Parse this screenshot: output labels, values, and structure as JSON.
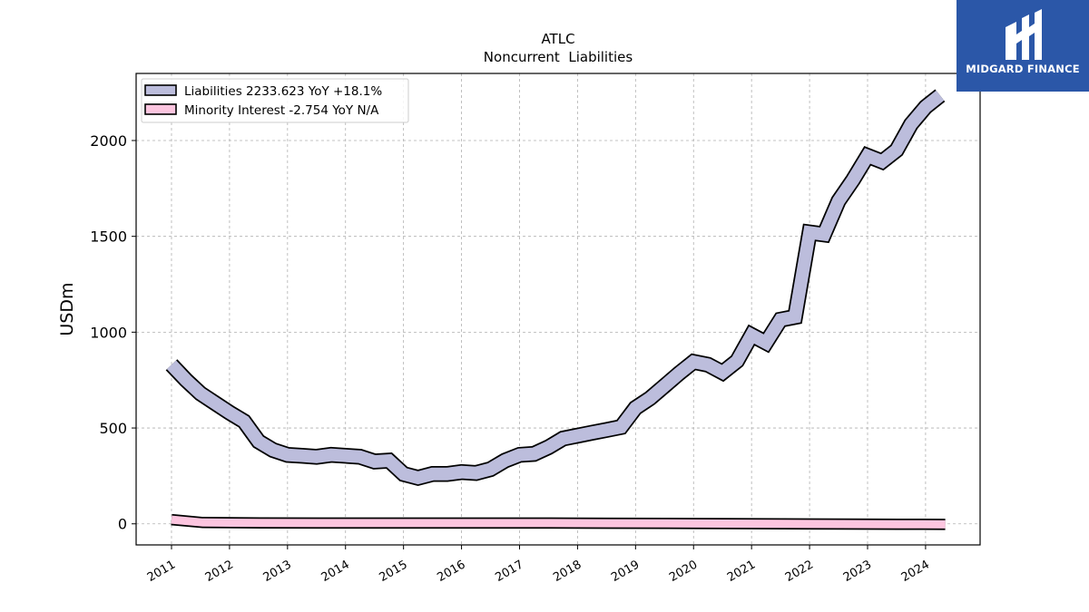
{
  "brand": {
    "name": "MIDGARD FINANCE",
    "bg": "#2b57a8"
  },
  "chart_data": {
    "type": "area",
    "title": "ATLC",
    "subtitle": "Noncurrent  Liabilities",
    "ylabel": "USDm",
    "xlabel": "",
    "ylim": [
      -110,
      2350
    ],
    "xlim": [
      2010.35,
      2024.9
    ],
    "yticks": [
      0,
      500,
      1000,
      1500,
      2000
    ],
    "xticks": [
      "2011",
      "2012",
      "2013",
      "2014",
      "2015",
      "2016",
      "2017",
      "2018",
      "2019",
      "2020",
      "2021",
      "2022",
      "2023",
      "2024"
    ],
    "grid": true,
    "legend_position": "top-left",
    "series": [
      {
        "name": "Liabilities",
        "legend_label": "Liabilities  2233.623 YoY +18.1%",
        "fill": "#bcbddc",
        "x": [
          2010.96,
          2011.21,
          2011.46,
          2011.71,
          2011.96,
          2012.21,
          2012.46,
          2012.71,
          2012.96,
          2013.21,
          2013.46,
          2013.71,
          2013.96,
          2014.21,
          2014.46,
          2014.71,
          2014.96,
          2015.21,
          2015.46,
          2015.71,
          2015.96,
          2016.21,
          2016.46,
          2016.71,
          2016.96,
          2017.21,
          2017.46,
          2017.71,
          2017.96,
          2018.21,
          2018.46,
          2018.71,
          2018.96,
          2019.21,
          2019.46,
          2019.71,
          2019.96,
          2020.21,
          2020.46,
          2020.71,
          2020.96,
          2021.21,
          2021.46,
          2021.71,
          2021.96,
          2022.21,
          2022.46,
          2022.71,
          2022.96,
          2023.21,
          2023.46,
          2023.71,
          2023.96,
          2024.21
        ],
        "values": [
          830,
          750,
          680,
          630,
          580,
          535,
          430,
          385,
          360,
          355,
          350,
          360,
          355,
          350,
          325,
          330,
          260,
          240,
          260,
          260,
          270,
          265,
          285,
          330,
          360,
          365,
          400,
          445,
          460,
          475,
          490,
          505,
          605,
          655,
          720,
          785,
          845,
          830,
          790,
          850,
          985,
          945,
          1065,
          1080,
          1520,
          1510,
          1685,
          1795,
          1920,
          1890,
          1950,
          2085,
          2175,
          2235
        ]
      },
      {
        "name": "Minority Interest",
        "legend_label": "Minority Interest  -2.754 YoY N/A",
        "fill": "#fcc5df",
        "x": [
          2010.96,
          2011.5,
          2012.5,
          2013.5,
          2014.5,
          2015.5,
          2016.5,
          2017.5,
          2018.5,
          2019.5,
          2020.5,
          2021.5,
          2022.5,
          2023.5,
          2024.3
        ],
        "values": [
          22,
          7,
          5,
          4,
          4,
          4,
          4,
          4,
          3,
          2,
          1,
          0,
          -1,
          -2,
          -3
        ]
      }
    ]
  }
}
